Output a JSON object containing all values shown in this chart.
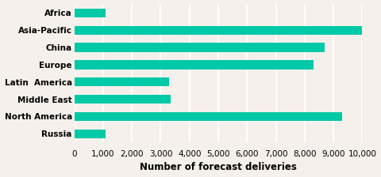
{
  "categories": [
    "Russia",
    "North America",
    "Middle East",
    "Latin  America",
    "Europe",
    "China",
    "Asia-Pacific",
    "Africa"
  ],
  "values": [
    1100,
    9300,
    3350,
    3300,
    8300,
    8700,
    10050,
    1100
  ],
  "bar_color": "#00C9A7",
  "bar_height": 0.52,
  "xlabel": "Number of forecast deliveries",
  "xlim": [
    0,
    10000
  ],
  "xticks": [
    0,
    1000,
    2000,
    3000,
    4000,
    5000,
    6000,
    7000,
    8000,
    9000,
    10000
  ],
  "background_color": "#f5f0eb",
  "grid_color": "#ffffff",
  "label_fontsize": 7.5,
  "xlabel_fontsize": 8.5,
  "tick_fontsize": 7.5
}
